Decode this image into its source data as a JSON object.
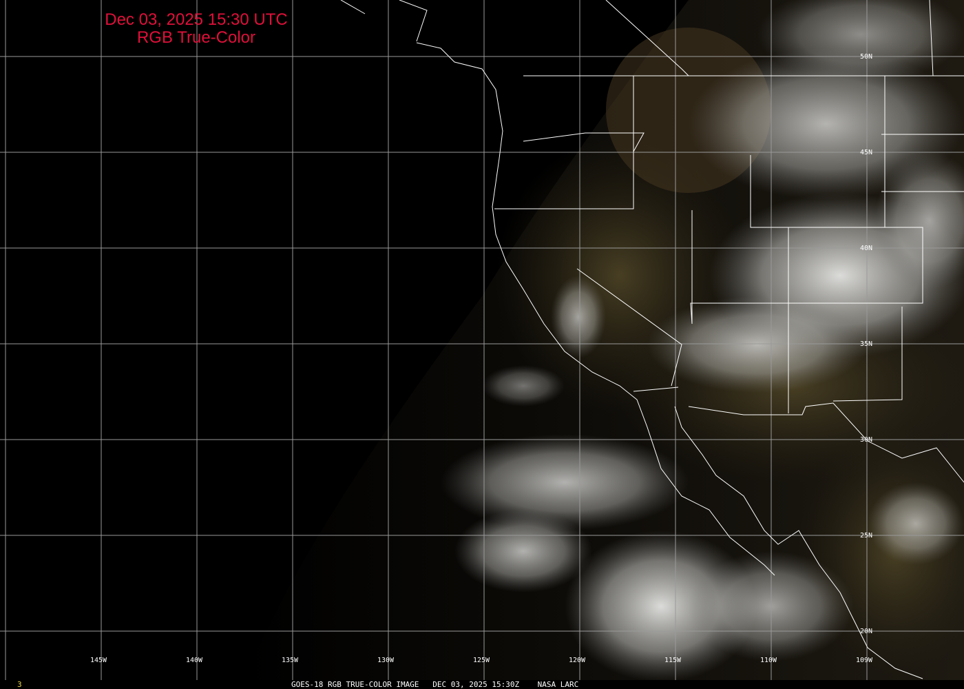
{
  "header": {
    "datetime": "Dec 03, 2025 15:30 UTC",
    "product": "RGB True-Color"
  },
  "map": {
    "longitude_labels": [
      "145W",
      "140W",
      "135W",
      "130W",
      "125W",
      "120W",
      "115W",
      "110W",
      "109W"
    ],
    "latitude_labels": [
      "50N",
      "45N",
      "40N",
      "35N",
      "30N",
      "25N",
      "20N"
    ],
    "colors": {
      "title": "#e0103a",
      "grid": "#9a9a9a",
      "borders": "#ffffff"
    }
  },
  "footer": {
    "frame_number": "3",
    "caption": "GOES-18 RGB TRUE-COLOR IMAGE   DEC 03, 2025 15:30Z    NASA LARC"
  }
}
